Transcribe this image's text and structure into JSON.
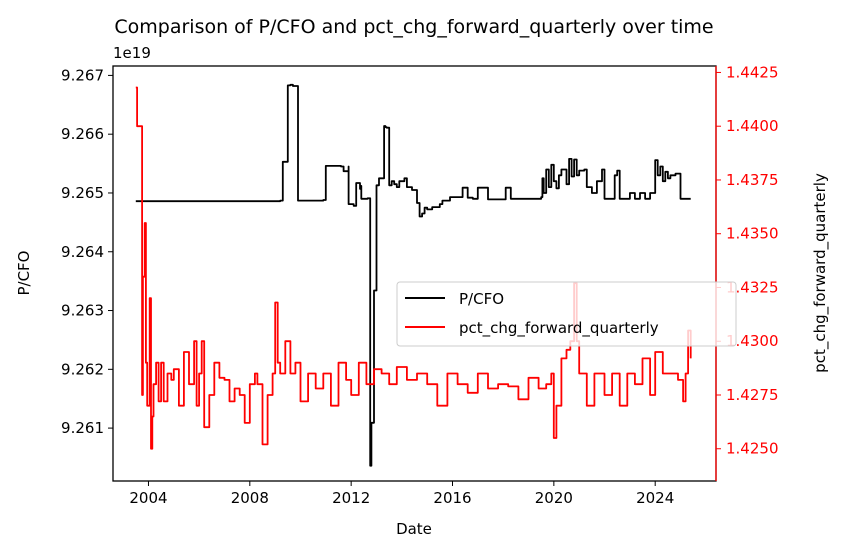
{
  "chart_data": {
    "type": "line",
    "title": "Comparison of P/CFO and pct_chg_forward_quarterly over time",
    "xlabel": "Date",
    "xlim": [
      2002.6,
      2026.4
    ],
    "x_ticks": [
      "2004",
      "2008",
      "2012",
      "2016",
      "2020",
      "2024"
    ],
    "x_tick_values": [
      2004,
      2008,
      2012,
      2016,
      2020,
      2024
    ],
    "left_axis": {
      "label": "P/CFO",
      "offset_text": "1e19",
      "ylim": [
        9.2601,
        9.26716
      ],
      "ticks": [
        "9.261",
        "9.262",
        "9.263",
        "9.264",
        "9.265",
        "9.266",
        "9.267"
      ],
      "tick_values": [
        9.261,
        9.262,
        9.263,
        9.264,
        9.265,
        9.266,
        9.267
      ]
    },
    "right_axis": {
      "label": "pct_chg_forward_quarterly",
      "color": "#ff0000",
      "ylim": [
        1.4235,
        1.4428
      ],
      "ticks": [
        "1.4250",
        "1.4275",
        "1.4300",
        "1.4325",
        "1.4350",
        "1.4375",
        "1.4400",
        "1.4425"
      ],
      "tick_values": [
        1.425,
        1.4275,
        1.43,
        1.4325,
        1.435,
        1.4375,
        1.44,
        1.4425
      ]
    },
    "legend_position": "center-right",
    "series": [
      {
        "name": "P/CFO",
        "axis": "left",
        "color": "#000000",
        "x": [
          2003.5,
          2009.2,
          2009.3,
          2009.5,
          2009.5,
          2009.6,
          2009.7,
          2009.9,
          2010.9,
          2011.0,
          2011.6,
          2011.7,
          2011.9,
          2011.9,
          2012.1,
          2012.2,
          2012.3,
          2012.35,
          2012.4,
          2012.4,
          2012.6,
          2012.65,
          2012.75,
          2012.8,
          2012.9,
          2013.0,
          2013.0,
          2013.1,
          2013.3,
          2013.35,
          2013.4,
          2013.5,
          2013.6,
          2013.7,
          2013.8,
          2013.9,
          2014.1,
          2014.2,
          2014.4,
          2014.6,
          2014.7,
          2014.8,
          2014.9,
          2015.0,
          2015.2,
          2015.5,
          2015.6,
          2015.9,
          2016.2,
          2016.4,
          2016.6,
          2016.8,
          2017.0,
          2017.4,
          2017.7,
          2018.0,
          2018.1,
          2018.3,
          2018.6,
          2019.5,
          2019.55,
          2019.6,
          2019.7,
          2019.8,
          2019.9,
          2020.0,
          2020.1,
          2020.2,
          2020.3,
          2020.5,
          2020.6,
          2020.7,
          2020.8,
          2020.9,
          2021.0,
          2021.2,
          2021.3,
          2021.5,
          2021.7,
          2021.9,
          2022.0,
          2022.2,
          2022.4,
          2022.5,
          2022.6,
          2022.8,
          2023.0,
          2023.2,
          2023.4,
          2023.6,
          2023.8,
          2024.0,
          2024.1,
          2024.2,
          2024.3,
          2024.4,
          2024.5,
          2024.6,
          2024.8,
          2025.0,
          2025.3,
          2025.4
        ],
        "y": [
          9.26486,
          9.26487,
          9.26553,
          9.26555,
          9.26683,
          9.26684,
          9.26682,
          9.26487,
          9.26488,
          9.26546,
          9.26545,
          9.26537,
          9.26545,
          9.26481,
          9.26478,
          9.26517,
          9.26517,
          9.26507,
          9.26512,
          9.2649,
          9.2649,
          9.26491,
          9.26036,
          9.26109,
          9.26334,
          9.26356,
          9.26513,
          9.26525,
          9.26614,
          9.26612,
          9.26611,
          9.26513,
          9.2652,
          9.26515,
          9.2651,
          9.2652,
          9.26525,
          9.2651,
          9.26505,
          9.26483,
          9.2646,
          9.26465,
          9.26475,
          9.26472,
          9.26476,
          9.26481,
          9.26487,
          9.26493,
          9.26493,
          9.26509,
          9.26492,
          9.2649,
          9.26509,
          9.26489,
          9.26489,
          9.26489,
          9.26509,
          9.2649,
          9.2649,
          9.26493,
          9.26525,
          9.265,
          9.2654,
          9.2651,
          9.26548,
          9.2652,
          9.26508,
          9.2653,
          9.2654,
          9.26515,
          9.26558,
          9.26528,
          9.26557,
          9.2653,
          9.26538,
          9.2654,
          9.2651,
          9.265,
          9.2652,
          9.2654,
          9.2649,
          9.2649,
          9.2653,
          9.26538,
          9.2649,
          9.2649,
          9.265,
          9.2649,
          9.265,
          9.2649,
          9.265,
          9.26556,
          9.2653,
          9.26545,
          9.2652,
          9.26536,
          9.26525,
          9.2653,
          9.26533,
          9.2649,
          9.2649,
          9.2649
        ]
      },
      {
        "name": "pct_chg_forward_quarterly",
        "axis": "right",
        "color": "#ff0000",
        "x": [
          2003.5,
          2003.55,
          2003.6,
          2003.75,
          2003.78,
          2003.85,
          2003.9,
          2003.95,
          2004.05,
          2004.1,
          2004.15,
          2004.2,
          2004.3,
          2004.4,
          2004.5,
          2004.6,
          2004.75,
          2004.9,
          2005.0,
          2005.2,
          2005.4,
          2005.6,
          2005.8,
          2005.9,
          2006.0,
          2006.1,
          2006.2,
          2006.4,
          2006.6,
          2006.8,
          2007.0,
          2007.2,
          2007.4,
          2007.6,
          2007.8,
          2008.0,
          2008.2,
          2008.3,
          2008.5,
          2008.7,
          2008.9,
          2009.0,
          2009.1,
          2009.2,
          2009.4,
          2009.6,
          2009.8,
          2010.0,
          2010.3,
          2010.6,
          2010.9,
          2011.2,
          2011.5,
          2011.8,
          2012.0,
          2012.3,
          2012.6,
          2012.9,
          2013.2,
          2013.5,
          2013.8,
          2014.2,
          2014.6,
          2015.0,
          2015.4,
          2015.8,
          2016.2,
          2016.6,
          2017.0,
          2017.4,
          2017.8,
          2018.2,
          2018.6,
          2019.0,
          2019.4,
          2019.7,
          2019.9,
          2020.0,
          2020.1,
          2020.3,
          2020.5,
          2020.65,
          2020.8,
          2020.9,
          2021.0,
          2021.3,
          2021.6,
          2022.0,
          2022.3,
          2022.6,
          2022.9,
          2023.2,
          2023.5,
          2023.8,
          2024.0,
          2024.3,
          2024.6,
          2024.9,
          2025.1,
          2025.2,
          2025.3,
          2025.4
        ],
        "y": [
          1.4418,
          1.44,
          1.44,
          1.4275,
          1.433,
          1.4355,
          1.429,
          1.427,
          1.432,
          1.425,
          1.4265,
          1.428,
          1.429,
          1.4272,
          1.429,
          1.4272,
          1.4285,
          1.4282,
          1.4287,
          1.427,
          1.4295,
          1.428,
          1.43,
          1.427,
          1.4285,
          1.43,
          1.426,
          1.4275,
          1.429,
          1.4283,
          1.4282,
          1.4272,
          1.4278,
          1.4275,
          1.4262,
          1.428,
          1.4285,
          1.428,
          1.4252,
          1.4275,
          1.4285,
          1.4318,
          1.429,
          1.4285,
          1.43,
          1.4285,
          1.429,
          1.4272,
          1.4285,
          1.4278,
          1.4285,
          1.427,
          1.429,
          1.4282,
          1.4275,
          1.429,
          1.428,
          1.4287,
          1.4285,
          1.428,
          1.4288,
          1.4282,
          1.4285,
          1.428,
          1.427,
          1.4285,
          1.428,
          1.4276,
          1.4285,
          1.4278,
          1.428,
          1.4279,
          1.4273,
          1.4283,
          1.4278,
          1.428,
          1.4285,
          1.4255,
          1.427,
          1.4292,
          1.4296,
          1.43,
          1.4327,
          1.43,
          1.4285,
          1.427,
          1.4285,
          1.4275,
          1.4285,
          1.427,
          1.4285,
          1.428,
          1.4292,
          1.4275,
          1.4295,
          1.4285,
          1.4285,
          1.4282,
          1.4272,
          1.4285,
          1.4305,
          1.4292
        ]
      }
    ]
  }
}
